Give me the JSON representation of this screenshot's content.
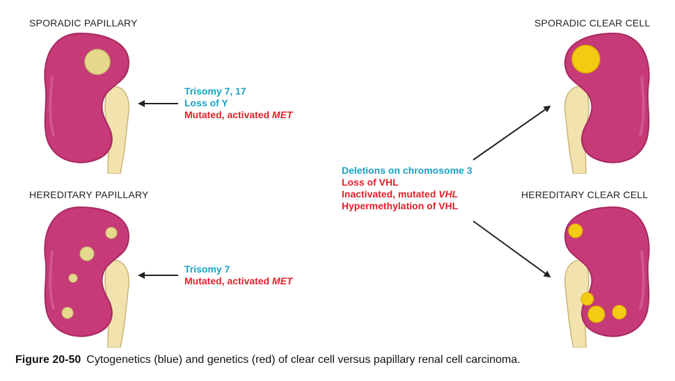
{
  "panels": {
    "sporadic_papillary": {
      "title": "SPORADIC PAPILLARY"
    },
    "hereditary_papillary": {
      "title": "HEREDITARY PAPILLARY"
    },
    "sporadic_clear": {
      "title": "SPORADIC CLEAR CELL"
    },
    "hereditary_clear": {
      "title": "HEREDITARY CLEAR CELL"
    }
  },
  "notes": {
    "sporadic_papillary": {
      "line1": "Trisomy 7, 17",
      "line2": "Loss of Y",
      "line3_prefix": "Mutated, activated ",
      "line3_gene": "MET"
    },
    "hereditary_papillary": {
      "line1": "Trisomy 7",
      "line2_prefix": "Mutated, activated ",
      "line2_gene": "MET"
    },
    "clear_cell": {
      "line1": "Deletions on chromosome 3",
      "line2": "Loss of VHL",
      "line3_prefix": "Inactivated, mutated ",
      "line3_gene": "VHL",
      "line4": "Hypermethylation of VHL"
    }
  },
  "caption": {
    "label": "Figure 20-50",
    "text": "Cytogenetics (blue) and genetics (red) of clear cell versus papillary renal cell carcinoma."
  },
  "colors": {
    "kidney": "#c63a78",
    "kidney_edge": "#a8285f",
    "ureter": "#f2e2ae",
    "papillary_tumor": "#e6d98e",
    "clear_tumor": "#f3cb12",
    "cytogenetics": "#1aa0c4",
    "genetics": "#e0202a"
  }
}
